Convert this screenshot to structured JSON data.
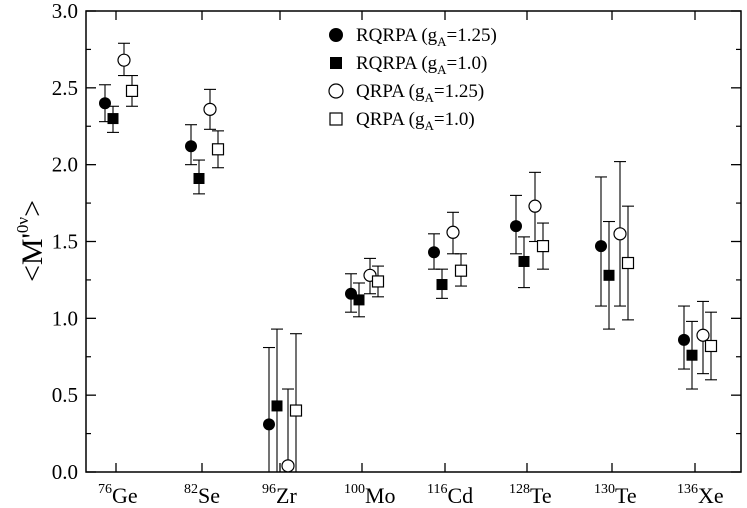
{
  "chart_data": {
    "type": "scatter",
    "title": "",
    "xlabel": "",
    "ylabel": {
      "main": "<M'",
      "sup": "0ν",
      "close": ">"
    },
    "ylim": [
      0.0,
      3.0
    ],
    "yticks": [
      "0.0",
      "0.5",
      "1.0",
      "1.5",
      "2.0",
      "2.5",
      "3.0"
    ],
    "categories": [
      {
        "mass": "76",
        "symbol": "Ge"
      },
      {
        "mass": "82",
        "symbol": "Se"
      },
      {
        "mass": "96",
        "symbol": "Zr"
      },
      {
        "mass": "100",
        "symbol": "Mo"
      },
      {
        "mass": "116",
        "symbol": "Cd"
      },
      {
        "mass": "128",
        "symbol": "Te"
      },
      {
        "mass": "130",
        "symbol": "Te"
      },
      {
        "mass": "136",
        "symbol": "Xe"
      }
    ],
    "series": [
      {
        "name": "RQRPA (g_A=1.25)",
        "legend": {
          "pre": "RQRPA (g",
          "sub": "A",
          "post": "=1.25)"
        },
        "marker": "filled-circle",
        "values": [
          2.4,
          2.12,
          0.31,
          1.16,
          1.43,
          1.6,
          1.47,
          0.86
        ],
        "err_low": [
          2.28,
          2.0,
          0.0,
          1.04,
          1.32,
          1.42,
          1.08,
          0.67
        ],
        "err_high": [
          2.52,
          2.26,
          0.81,
          1.29,
          1.55,
          1.8,
          1.92,
          1.08
        ]
      },
      {
        "name": "RQRPA (g_A=1.0)",
        "legend": {
          "pre": "RQRPA (g",
          "sub": "A",
          "post": "=1.0)"
        },
        "marker": "filled-square",
        "values": [
          2.3,
          1.91,
          0.43,
          1.12,
          1.22,
          1.37,
          1.28,
          0.76
        ],
        "err_low": [
          2.21,
          1.81,
          0.0,
          1.01,
          1.13,
          1.2,
          0.93,
          0.54
        ],
        "err_high": [
          2.38,
          2.03,
          0.93,
          1.23,
          1.32,
          1.53,
          1.63,
          0.98
        ]
      },
      {
        "name": "QRPA (g_A=1.25)",
        "legend": {
          "pre": "QRPA (g",
          "sub": "A",
          "post": "=1.25)"
        },
        "marker": "open-circle",
        "values": [
          2.68,
          2.36,
          0.04,
          1.28,
          1.56,
          1.73,
          1.55,
          0.89
        ],
        "err_low": [
          2.58,
          2.23,
          0.0,
          1.16,
          1.42,
          1.5,
          1.08,
          0.64
        ],
        "err_high": [
          2.79,
          2.49,
          0.54,
          1.39,
          1.69,
          1.95,
          2.02,
          1.11
        ]
      },
      {
        "name": "QRPA (g_A=1.0)",
        "legend": {
          "pre": "QRPA (g",
          "sub": "A",
          "post": "=1.0)"
        },
        "marker": "open-square",
        "values": [
          2.48,
          2.1,
          0.4,
          1.24,
          1.31,
          1.47,
          1.36,
          0.82
        ],
        "err_low": [
          2.38,
          1.98,
          0.0,
          1.14,
          1.21,
          1.32,
          0.99,
          0.6
        ],
        "err_high": [
          2.58,
          2.22,
          0.9,
          1.34,
          1.42,
          1.62,
          1.73,
          1.04
        ]
      }
    ],
    "legend_position": "top-center",
    "grid": false
  }
}
